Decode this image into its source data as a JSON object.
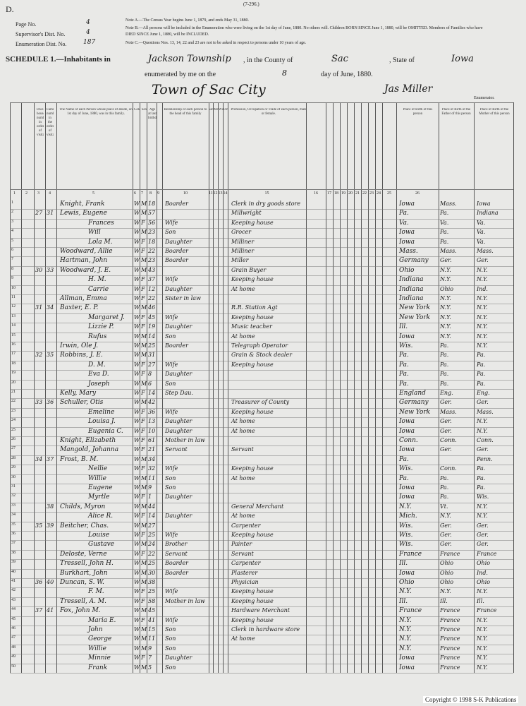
{
  "header": {
    "page_letter": "D.",
    "form_number": "(7-296.)",
    "page_no": {
      "label": "Page No.",
      "value": "4"
    },
    "supervisor_dist": {
      "label": "Supervisor's Dist. No.",
      "value": "4"
    },
    "enumeration_dist": {
      "label": "Enumeration Dist. No.",
      "value": "187"
    },
    "notes": [
      "Note A.—The Census Year begins June 1, 1879, and ends May 31, 1880.",
      "Note B.—All persons will be included in the Enumeration who were living on the 1st day of June, 1880. No others will. Children BORN SINCE June 1, 1880, will be OMITTED. Members of Families who have DIED SINCE June 1, 1880, will be INCLUDED.",
      "Note C.—Questions Nos. 13, 14, 22 and 23 are not to be asked in respect to persons under 10 years of age."
    ],
    "schedule": {
      "label": "SCHEDULE 1.—Inhabitants in",
      "township": "Jackson Township",
      "county_label": ", in the County of",
      "county": "Sac",
      "state_label": ", State of",
      "state": "Iowa",
      "enumerated_label": "enumerated by me on the",
      "day": "8",
      "date_label": "day of June, 1880.",
      "town": "Town of Sac City",
      "enumerator": "Jas Miller",
      "enumerator_label": "Enumerator."
    }
  },
  "table": {
    "columns": [
      "Dwelling-houses numbered in order of visitation.",
      "Families numbered in the order of visitation.",
      "The Name of each Person whose place of abode, on 1st day of June, 1880, was in this family.",
      "Color",
      "Sex",
      "Age at last birthday",
      "Relationship of each person to the head of this family",
      "Single",
      "Married",
      "Widowed",
      "Divorced",
      "Profession, Occupation or Trade of each person, male or female.",
      "Place of Birth of this person",
      "Place of Birth of the Father of this person",
      "Place of Birth of the Mother of this person"
    ],
    "column_numbers": [
      1,
      2,
      3,
      4,
      5,
      6,
      7,
      8,
      9,
      10,
      11,
      12,
      13,
      14,
      15,
      16,
      17,
      18,
      19,
      20,
      21,
      22,
      23,
      24,
      25,
      26
    ],
    "rows": [
      [
        1,
        null,
        null,
        "Knight, Frank",
        "W",
        "M",
        "18",
        "Boarder",
        "Clerk in dry goods store",
        "Iowa",
        "Mass.",
        "Iowa"
      ],
      [
        2,
        "27",
        "31",
        "Lewis, Eugene",
        "W",
        "M",
        "57",
        null,
        "Millwright",
        "Pa.",
        "Pa.",
        "Indiana"
      ],
      [
        3,
        null,
        null,
        "Frances",
        "W",
        "F",
        "56",
        "Wife",
        "Keeping house",
        "Va.",
        "Va.",
        "Va."
      ],
      [
        4,
        null,
        null,
        "Will",
        "W",
        "M",
        "23",
        "Son",
        "Grocer",
        "Iowa",
        "Pa.",
        "Va."
      ],
      [
        5,
        null,
        null,
        "Lola M.",
        "W",
        "F",
        "18",
        "Daughter",
        "Milliner",
        "Iowa",
        "Pa.",
        "Va."
      ],
      [
        6,
        null,
        null,
        "Woodward, Allie",
        "W",
        "F",
        "22",
        "Boarder",
        "Milliner",
        "Mass.",
        "Mass.",
        "Mass."
      ],
      [
        7,
        null,
        null,
        "Hartman, John",
        "W",
        "M",
        "23",
        "Boarder",
        "Miller",
        "Germany",
        "Ger.",
        "Ger."
      ],
      [
        8,
        "30",
        "33",
        "Woodward, J. E.",
        "W",
        "M",
        "43",
        null,
        "Grain Buyer",
        "Ohio",
        "N.Y.",
        "N.Y."
      ],
      [
        9,
        null,
        null,
        "H. M.",
        "W",
        "F",
        "37",
        "Wife",
        "Keeping house",
        "Indiana",
        "N.Y.",
        "N.Y."
      ],
      [
        10,
        null,
        null,
        "Carrie",
        "W",
        "F",
        "12",
        "Daughter",
        "At home",
        "Indiana",
        "Ohio",
        "Ind."
      ],
      [
        11,
        null,
        null,
        "Allman, Emma",
        "W",
        "F",
        "22",
        "Sister in law",
        null,
        "Indiana",
        "N.Y.",
        "N.Y."
      ],
      [
        12,
        "31",
        "34",
        "Baxter, E. P.",
        "W",
        "M",
        "46",
        null,
        "R.R. Station Agt",
        "New York",
        "N.Y.",
        "N.Y."
      ],
      [
        13,
        null,
        null,
        "Margaret J.",
        "W",
        "F",
        "45",
        "Wife",
        "Keeping house",
        "New York",
        "N.Y.",
        "N.Y."
      ],
      [
        14,
        null,
        null,
        "Lizzie P.",
        "W",
        "F",
        "19",
        "Daughter",
        "Music teacher",
        "Ill.",
        "N.Y.",
        "N.Y."
      ],
      [
        15,
        null,
        null,
        "Rufus",
        "W",
        "M",
        "14",
        "Son",
        "At home",
        "Iowa",
        "N.Y.",
        "N.Y."
      ],
      [
        16,
        null,
        null,
        "Irwin, Ole J.",
        "W",
        "M",
        "25",
        "Boarder",
        "Telegraph Operator",
        "Wis.",
        "Pa.",
        "N.Y."
      ],
      [
        17,
        "32",
        "35",
        "Robbins, J. E.",
        "W",
        "M",
        "31",
        null,
        "Grain & Stock dealer",
        "Pa.",
        "Pa.",
        "Pa."
      ],
      [
        18,
        null,
        null,
        "D. M.",
        "W",
        "F",
        "27",
        "Wife",
        "Keeping house",
        "Pa.",
        "Pa.",
        "Pa."
      ],
      [
        19,
        null,
        null,
        "Eva D.",
        "W",
        "F",
        "8",
        "Daughter",
        null,
        "Pa.",
        "Pa.",
        "Pa."
      ],
      [
        20,
        null,
        null,
        "Joseph",
        "W",
        "M",
        "6",
        "Son",
        null,
        "Pa.",
        "Pa.",
        "Pa."
      ],
      [
        21,
        null,
        null,
        "Kelly, Mary",
        "W",
        "F",
        "14",
        "Step Dau.",
        null,
        "England",
        "Eng.",
        "Eng."
      ],
      [
        22,
        "33",
        "36",
        "Schuller, Otis",
        "W",
        "M",
        "42",
        null,
        "Treasurer of County",
        "Germany",
        "Ger.",
        "Ger."
      ],
      [
        23,
        null,
        null,
        "Emeline",
        "W",
        "F",
        "36",
        "Wife",
        "Keeping house",
        "New York",
        "Mass.",
        "Mass."
      ],
      [
        24,
        null,
        null,
        "Louisa J.",
        "W",
        "F",
        "13",
        "Daughter",
        "At home",
        "Iowa",
        "Ger.",
        "N.Y."
      ],
      [
        25,
        null,
        null,
        "Eugenia C.",
        "W",
        "F",
        "10",
        "Daughter",
        "At home",
        "Iowa",
        "Ger.",
        "N.Y."
      ],
      [
        26,
        null,
        null,
        "Knight, Elizabeth",
        "W",
        "F",
        "61",
        "Mother in law",
        null,
        "Conn.",
        "Conn.",
        "Conn."
      ],
      [
        27,
        null,
        null,
        "Mangold, Johanna",
        "W",
        "F",
        "21",
        "Servant",
        "Servant",
        "Iowa",
        "Ger.",
        "Ger."
      ],
      [
        28,
        "34",
        "37",
        "Frost, B. M.",
        "W",
        "M",
        "34",
        null,
        null,
        "Pa.",
        null,
        "Penn."
      ],
      [
        29,
        null,
        null,
        "Nellie",
        "W",
        "F",
        "32",
        "Wife",
        "Keeping house",
        "Wis.",
        "Conn.",
        "Pa."
      ],
      [
        30,
        null,
        null,
        "Willie",
        "W",
        "M",
        "11",
        "Son",
        "At home",
        "Pa.",
        "Pa.",
        "Pa."
      ],
      [
        31,
        null,
        null,
        "Eugene",
        "W",
        "M",
        "9",
        "Son",
        null,
        "Iowa",
        "Pa.",
        "Pa."
      ],
      [
        32,
        null,
        null,
        "Myrtle",
        "W",
        "F",
        "1",
        "Daughter",
        null,
        "Iowa",
        "Pa.",
        "Wis."
      ],
      [
        33,
        null,
        "38",
        "Childs, Myron",
        "W",
        "M",
        "44",
        null,
        "General Merchant",
        "N.Y.",
        "Vt.",
        "N.Y."
      ],
      [
        34,
        null,
        null,
        "Alice R.",
        "W",
        "F",
        "14",
        "Daughter",
        "At home",
        "Mich.",
        "N.Y.",
        "N.Y."
      ],
      [
        35,
        "35",
        "39",
        "Beitcher, Chas.",
        "W",
        "M",
        "27",
        null,
        "Carpenter",
        "Wis.",
        "Ger.",
        "Ger."
      ],
      [
        36,
        null,
        null,
        "Louise",
        "W",
        "F",
        "25",
        "Wife",
        "Keeping house",
        "Wis.",
        "Ger.",
        "Ger."
      ],
      [
        37,
        null,
        null,
        "Gustave",
        "W",
        "M",
        "24",
        "Brother",
        "Painter",
        "Wis.",
        "Ger.",
        "Ger."
      ],
      [
        38,
        null,
        null,
        "Deloste, Verne",
        "W",
        "F",
        "22",
        "Servant",
        "Servant",
        "France",
        "France",
        "France"
      ],
      [
        39,
        null,
        null,
        "Tressell, John H.",
        "W",
        "M",
        "25",
        "Boarder",
        "Carpenter",
        "Ill.",
        "Ohio",
        "Ohio"
      ],
      [
        40,
        null,
        null,
        "Burkhart, John",
        "W",
        "M",
        "30",
        "Boarder",
        "Plasterer",
        "Iowa",
        "Ohio",
        "Ind."
      ],
      [
        41,
        "36",
        "40",
        "Duncan, S. W.",
        "W",
        "M",
        "38",
        null,
        "Physician",
        "Ohio",
        "Ohio",
        "Ohio"
      ],
      [
        42,
        null,
        null,
        "F. M.",
        "W",
        "F",
        "25",
        "Wife",
        "Keeping house",
        "N.Y.",
        "N.Y.",
        "N.Y."
      ],
      [
        43,
        null,
        null,
        "Tressell, A. M.",
        "W",
        "F",
        "58",
        "Mother in law",
        "Keeping house",
        "Ill.",
        "Ill.",
        "Ill."
      ],
      [
        44,
        "37",
        "41",
        "Fox, John M.",
        "W",
        "M",
        "45",
        null,
        "Hardware Merchant",
        "France",
        "France",
        "France"
      ],
      [
        45,
        null,
        null,
        "Maria E.",
        "W",
        "F",
        "41",
        "Wife",
        "Keeping house",
        "N.Y.",
        "France",
        "N.Y."
      ],
      [
        46,
        null,
        null,
        "John",
        "W",
        "M",
        "15",
        "Son",
        "Clerk in hardware store",
        "N.Y.",
        "France",
        "N.Y."
      ],
      [
        47,
        null,
        null,
        "George",
        "W",
        "M",
        "11",
        "Son",
        "At home",
        "N.Y.",
        "France",
        "N.Y."
      ],
      [
        48,
        null,
        null,
        "Willie",
        "W",
        "M",
        "9",
        "Son",
        null,
        "N.Y.",
        "France",
        "N.Y."
      ],
      [
        49,
        null,
        null,
        "Minnie",
        "W",
        "F",
        "7",
        "Daughter",
        null,
        "Iowa",
        "France",
        "N.Y."
      ],
      [
        50,
        null,
        null,
        "Frank",
        "W",
        "M",
        "5",
        "Son",
        null,
        "Iowa",
        "France",
        "N.Y."
      ]
    ]
  },
  "footer": {
    "copyright": "Copyright © 1998 S-K Publications"
  }
}
